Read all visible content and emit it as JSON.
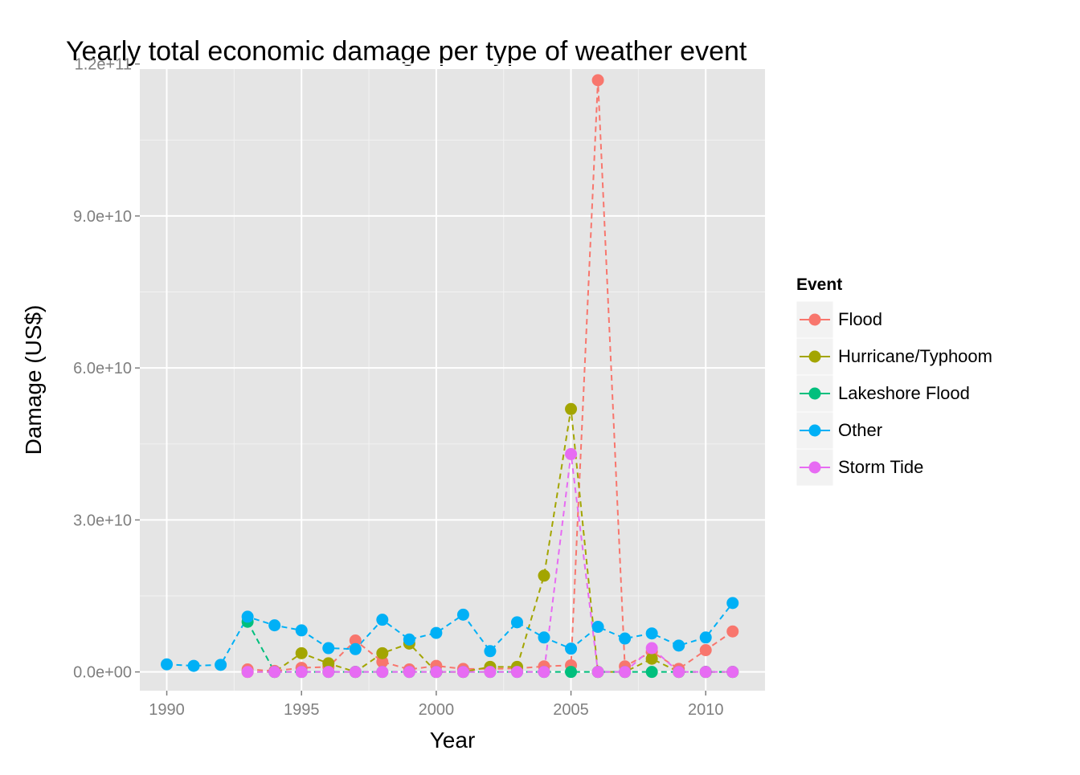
{
  "chart_data": {
    "type": "line",
    "title": "Yearly total economic damage per type of weather event",
    "xlabel": "Year",
    "ylabel": "Damage (US$)",
    "xlim": [
      1989.0,
      2012.2
    ],
    "ylim": [
      -3700000000,
      119000000000
    ],
    "x_ticks": [
      1990,
      1995,
      2000,
      2005,
      2010
    ],
    "y_ticks": [
      0,
      30000000000,
      60000000000,
      90000000000,
      120000000000
    ],
    "y_tick_labels": [
      "0.0e+00",
      "3.0e+10",
      "6.0e+10",
      "9.0e+10",
      "1.2e+11"
    ],
    "x_tick_labels": [
      "1990",
      "1995",
      "2000",
      "2005",
      "2010"
    ],
    "legend": {
      "title": "Event",
      "position": "right"
    },
    "grid": true,
    "series": [
      {
        "name": "Flood",
        "color": "#F8766D",
        "x": [
          1993,
          1994,
          1995,
          1996,
          1997,
          1998,
          1999,
          2000,
          2001,
          2002,
          2003,
          2004,
          2005,
          2006,
          2007,
          2008,
          2009,
          2010,
          2011
        ],
        "y": [
          500000000,
          200000000,
          800000000,
          1000000000,
          6200000000,
          2000000000,
          500000000,
          1200000000,
          600000000,
          600000000,
          700000000,
          1100000000,
          1300000000,
          116800000000,
          1100000000,
          4000000000,
          600000000,
          4300000000,
          8000000000
        ]
      },
      {
        "name": "Hurricane/Typhoom",
        "color": "#A3A500",
        "x": [
          1993,
          1994,
          1995,
          1996,
          1997,
          1998,
          1999,
          2000,
          2001,
          2002,
          2003,
          2004,
          2005,
          2006,
          2007,
          2008,
          2009,
          2010,
          2011
        ],
        "y": [
          0,
          0,
          3700000000,
          1700000000,
          0,
          3700000000,
          5600000000,
          0,
          0,
          1000000000,
          1000000000,
          19000000000,
          51900000000,
          0,
          0,
          2600000000,
          0,
          0,
          0
        ]
      },
      {
        "name": "Lakeshore Flood",
        "color": "#00BF7D",
        "x": [
          1993,
          1994,
          1995,
          1996,
          1997,
          1998,
          1999,
          2000,
          2001,
          2002,
          2003,
          2004,
          2005,
          2006,
          2007,
          2008,
          2009,
          2010,
          2011
        ],
        "y": [
          9900000000,
          0,
          0,
          0,
          0,
          0,
          0,
          0,
          0,
          0,
          0,
          0,
          0,
          0,
          0,
          0,
          0,
          0,
          0
        ]
      },
      {
        "name": "Other",
        "color": "#00B0F6",
        "x": [
          1990,
          1991,
          1992,
          1993,
          1994,
          1995,
          1996,
          1997,
          1998,
          1999,
          2000,
          2001,
          2002,
          2003,
          2004,
          2005,
          2006,
          2007,
          2008,
          2009,
          2010,
          2011
        ],
        "y": [
          1500000000,
          1200000000,
          1400000000,
          10900000000,
          9200000000,
          8200000000,
          4700000000,
          4500000000,
          10300000000,
          6400000000,
          7700000000,
          11300000000,
          4100000000,
          9800000000,
          6800000000,
          4600000000,
          8900000000,
          6600000000,
          7600000000,
          5200000000,
          6800000000,
          13600000000
        ]
      },
      {
        "name": "Storm Tide",
        "color": "#E76BF3",
        "x": [
          1993,
          1994,
          1995,
          1996,
          1997,
          1998,
          1999,
          2000,
          2001,
          2002,
          2003,
          2004,
          2005,
          2006,
          2007,
          2008,
          2009,
          2010,
          2011
        ],
        "y": [
          0,
          0,
          0,
          0,
          0,
          0,
          0,
          0,
          0,
          0,
          0,
          0,
          43000000000,
          0,
          0,
          4700000000,
          0,
          0,
          0
        ]
      }
    ]
  }
}
